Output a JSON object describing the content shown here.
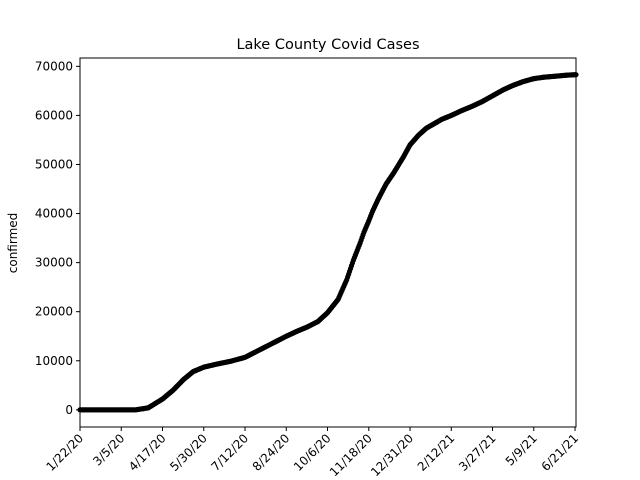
{
  "chart_data": {
    "type": "scatter",
    "title": "Lake County Covid Cases",
    "xlabel": "",
    "ylabel": "confirmed",
    "grid": false,
    "marker_color": "#000000",
    "x_start": "1/22/20",
    "x_end": "6/22/21",
    "xlim": [
      "1/22/20",
      "6/22/21"
    ],
    "ylim": [
      -3500,
      71700
    ],
    "x_ticks": [
      "1/22/20",
      "3/5/20",
      "4/17/20",
      "5/30/20",
      "7/12/20",
      "8/24/20",
      "10/6/20",
      "11/18/20",
      "12/31/20",
      "2/12/21",
      "3/27/21",
      "5/9/21",
      "6/21/21"
    ],
    "y_ticks": [
      0,
      10000,
      20000,
      30000,
      40000,
      50000,
      60000,
      70000
    ],
    "y_tick_labels": [
      "0",
      "10000",
      "20000",
      "30000",
      "40000",
      "50000",
      "60000",
      "70000"
    ],
    "series": [
      {
        "x": [
          "1/22/20",
          "3/5/20",
          "3/20/20",
          "4/2/20",
          "4/17/20",
          "4/28/20",
          "5/9/20",
          "5/19/20",
          "5/30/20",
          "6/12/20",
          "6/27/20",
          "7/12/20",
          "7/23/20",
          "8/3/20",
          "8/14/20",
          "8/24/20",
          "9/4/20",
          "9/15/20",
          "9/26/20",
          "10/6/20",
          "10/17/20",
          "10/26/20",
          "11/2/20",
          "11/9/20",
          "11/13/20",
          "11/18/20",
          "11/22/20",
          "11/28/20",
          "12/6/20",
          "12/14/20",
          "12/24/20",
          "12/31/20",
          "1/9/21",
          "1/17/21",
          "1/25/21",
          "2/2/21",
          "2/12/21",
          "2/23/21",
          "3/5/21",
          "3/16/21",
          "3/27/21",
          "4/7/21",
          "4/17/21",
          "4/28/21",
          "5/9/21",
          "5/20/21",
          "6/1/21",
          "6/12/21",
          "6/21/21",
          "6/22/21"
        ],
        "y": [
          0,
          0,
          0,
          400,
          2200,
          4000,
          6200,
          7800,
          8700,
          9300,
          9900,
          10700,
          11800,
          12900,
          14000,
          15000,
          16000,
          16900,
          18000,
          19800,
          22500,
          26500,
          30500,
          34000,
          36200,
          38500,
          40500,
          43000,
          46000,
          48300,
          51500,
          54000,
          56000,
          57400,
          58300,
          59200,
          60000,
          61000,
          61800,
          62800,
          64000,
          65200,
          66100,
          66900,
          67500,
          67800,
          68000,
          68200,
          68300,
          68300
        ]
      }
    ]
  }
}
